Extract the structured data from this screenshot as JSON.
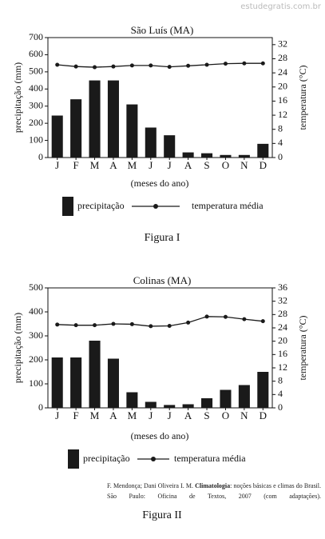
{
  "watermark": "estudegratis.com.br",
  "chart_data": [
    {
      "type": "bar",
      "title": "São Luís (MA)",
      "x_label": "(meses do ano)",
      "y_label": "precipitação (mm)",
      "y2_label": "temperatura (°C)",
      "categories": [
        "J",
        "F",
        "M",
        "A",
        "M",
        "J",
        "J",
        "A",
        "S",
        "O",
        "N",
        "D"
      ],
      "series": [
        {
          "name": "precipitação",
          "type": "bar",
          "color": "#1a1a1a",
          "values": [
            245,
            340,
            450,
            450,
            310,
            175,
            130,
            30,
            25,
            15,
            15,
            80
          ]
        },
        {
          "name": "temperatura média",
          "type": "line",
          "axis": "y2",
          "color": "#1a1a1a",
          "values": [
            26.3,
            25.8,
            25.6,
            25.8,
            26.1,
            26.1,
            25.7,
            26,
            26.3,
            26.6,
            26.7,
            26.7
          ]
        }
      ],
      "ylim": [
        0,
        700
      ],
      "yticks": [
        0,
        100,
        200,
        300,
        400,
        500,
        600,
        700
      ],
      "y2lim": [
        0,
        34
      ],
      "y2ticks": [
        0,
        4,
        8,
        12,
        16,
        20,
        24,
        28,
        32
      ],
      "grid": false,
      "legend": "bottom",
      "caption": "Figura I"
    },
    {
      "type": "bar",
      "title": "Colinas (MA)",
      "x_label": "(meses do ano)",
      "y_label": "precipitação (mm)",
      "y2_label": "temperatura (°C)",
      "categories": [
        "J",
        "F",
        "M",
        "A",
        "M",
        "J",
        "J",
        "A",
        "S",
        "O",
        "N",
        "D"
      ],
      "series": [
        {
          "name": "precipitação",
          "type": "bar",
          "color": "#1a1a1a",
          "values": [
            210,
            210,
            280,
            205,
            65,
            25,
            12,
            15,
            40,
            75,
            95,
            150
          ]
        },
        {
          "name": "temperatura média",
          "type": "line",
          "axis": "y2",
          "color": "#1a1a1a",
          "values": [
            25,
            24.8,
            24.8,
            25.2,
            25.1,
            24.5,
            24.6,
            25.6,
            27.4,
            27.3,
            26.6,
            26
          ]
        }
      ],
      "ylim": [
        0,
        500
      ],
      "yticks": [
        0,
        100,
        200,
        300,
        400,
        500
      ],
      "y2lim": [
        0,
        36
      ],
      "y2ticks": [
        0,
        4,
        8,
        12,
        16,
        20,
        24,
        28,
        32,
        36
      ],
      "grid": false,
      "legend": "bottom",
      "caption": "Figura II"
    }
  ],
  "source": {
    "authors": "F. Mendonça; Dani Oliveira I. M.",
    "book": "Climatologia",
    "rest": ": noções básicas e climas do Brasil. São Paulo: Oficina de Textos, 2007 (com adaptações)."
  }
}
